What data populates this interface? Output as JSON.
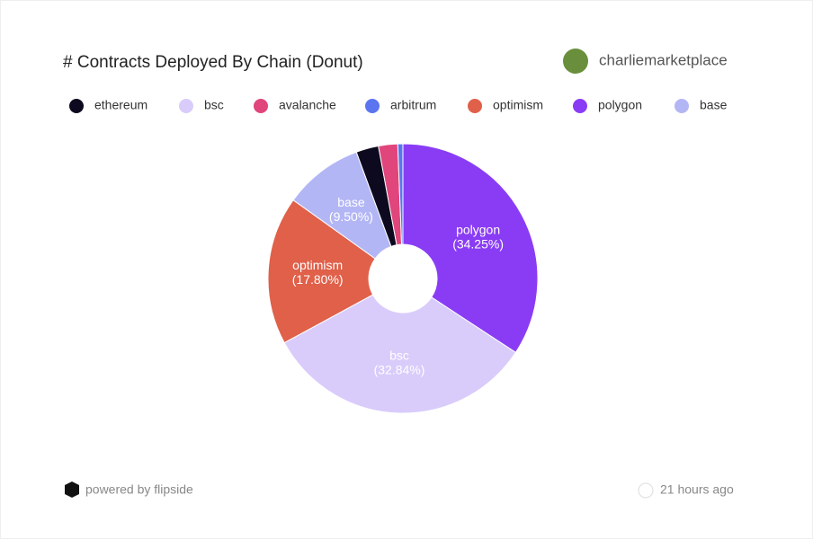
{
  "header": {
    "author": "charliemarketplace"
  },
  "chart_data": {
    "type": "donut",
    "title": "# Contracts Deployed By Chain (Donut)",
    "legend": [
      "ethereum",
      "bsc",
      "avalanche",
      "arbitrum",
      "optimism",
      "polygon",
      "base"
    ],
    "categories": [
      "polygon",
      "bsc",
      "optimism",
      "base",
      "ethereum",
      "avalanche",
      "arbitrum"
    ],
    "values": [
      34.25,
      32.84,
      17.8,
      9.5,
      2.7,
      2.3,
      0.61
    ],
    "value_labels": [
      "(34.25%)",
      "(32.84%)",
      "(17.80%)",
      "(9.50%)",
      null,
      null,
      null
    ],
    "colors": [
      "#8a3cf5",
      "#d9ccfb",
      "#e0604a",
      "#b3b6f5",
      "#0d0a1f",
      "#e0457b",
      "#5b74f0"
    ]
  },
  "footer": {
    "powered": "powered by flipside",
    "time": "21 hours ago"
  }
}
